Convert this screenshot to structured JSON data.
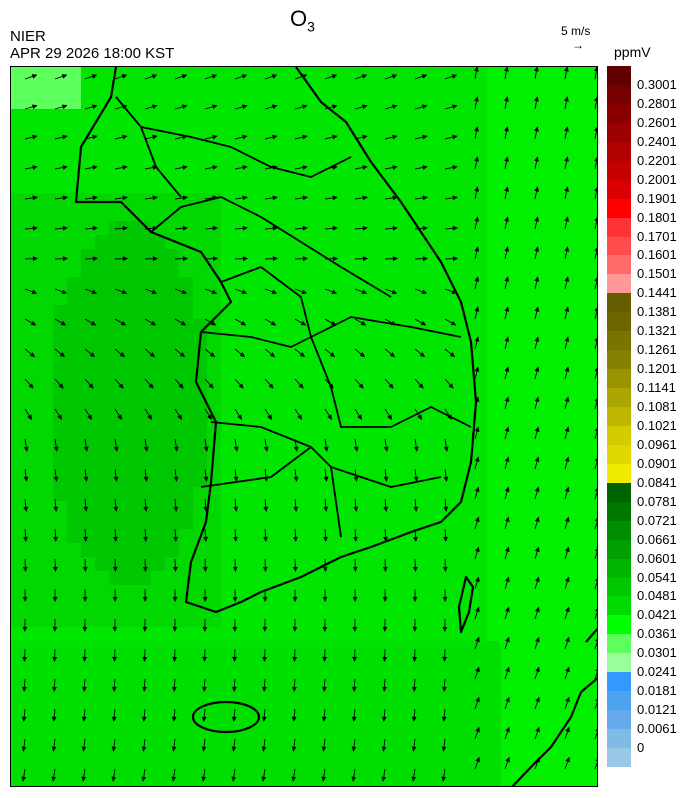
{
  "header": {
    "title": "O",
    "title_sub": "3",
    "org": "NIER",
    "datetime": "APR 29 2026 18:00 KST",
    "vector_scale": "5 m/s",
    "vector_arrow": "→",
    "unit": "ppmV"
  },
  "colorbar": {
    "labels": [
      "0.3001",
      "0.2801",
      "0.2601",
      "0.2401",
      "0.2201",
      "0.2001",
      "0.1901",
      "0.1801",
      "0.1701",
      "0.1601",
      "0.1501",
      "0.1441",
      "0.1381",
      "0.1321",
      "0.1261",
      "0.1201",
      "0.1141",
      "0.1081",
      "0.1021",
      "0.0961",
      "0.0901",
      "0.0841",
      "0.0781",
      "0.0721",
      "0.0661",
      "0.0601",
      "0.0541",
      "0.0481",
      "0.0421",
      "0.0361",
      "0.0301",
      "0.0241",
      "0.0181",
      "0.0121",
      "0.0061",
      "0"
    ],
    "colors": [
      "#600000",
      "#740000",
      "#880000",
      "#9c0000",
      "#b00000",
      "#c40000",
      "#d80000",
      "#ff0000",
      "#ff3333",
      "#ff4d4d",
      "#ff6a6a",
      "#ff9999",
      "#665c00",
      "#6e6400",
      "#7a7300",
      "#868000",
      "#9a9300",
      "#aca600",
      "#c0b800",
      "#d4cb00",
      "#e0d800",
      "#f0ea00",
      "#006400",
      "#007800",
      "#008c00",
      "#00a000",
      "#00b400",
      "#00c800",
      "#00dc00",
      "#00ff00",
      "#5cff5c",
      "#99ff99",
      "#3399ff",
      "#4da3f0",
      "#66aaee",
      "#80bbe6",
      "#99c8e6"
    ]
  },
  "map": {
    "field": "O3 concentration with wind vectors",
    "dominant_range": "0.0421-0.0601 ppmV"
  }
}
